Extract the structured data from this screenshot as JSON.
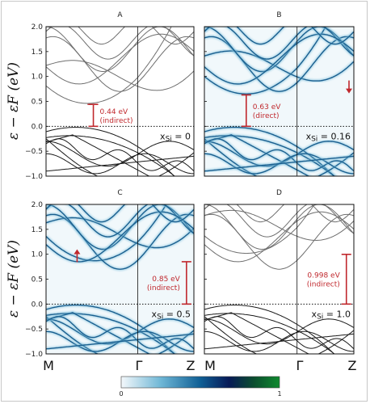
{
  "chart_data": {
    "type": "line",
    "ylabel": "ε − εF (eV)",
    "ylim": [
      -1.0,
      2.0
    ],
    "yticks": [
      "2.0",
      "1.5",
      "1.0",
      "0.5",
      "0.0",
      "−0.5",
      "−1.0"
    ],
    "kpath_labels": [
      "M",
      "Γ",
      "Z"
    ],
    "colorbar": {
      "min": "0",
      "max": "1",
      "colors": [
        "#f4f8fb",
        "#6fb7d6",
        "#0f5f95",
        "#071a57",
        "#0b4e2e",
        "#0f8a2e"
      ]
    },
    "panels": [
      {
        "title": "A",
        "style": "lines",
        "gap_value": 0.44,
        "gap_label": "0.44 eV",
        "gap_type": "(indirect)",
        "xsi_label": "x",
        "xsi_sub": "Si",
        "xsi_value": "= 0"
      },
      {
        "title": "B",
        "style": "spectral",
        "gap_value": 0.63,
        "gap_label": "0.63 eV",
        "gap_type": "(direct)",
        "xsi_label": "x",
        "xsi_sub": "Si",
        "xsi_value": "= 0.16"
      },
      {
        "title": "C",
        "style": "spectral",
        "gap_value": 0.85,
        "gap_label": "0.85 eV",
        "gap_type": "(indirect)",
        "xsi_label": "x",
        "xsi_sub": "Si",
        "xsi_value": "= 0.5"
      },
      {
        "title": "D",
        "style": "lines",
        "gap_value": 0.998,
        "gap_label": "0.998 eV",
        "gap_type": "(indirect)",
        "xsi_label": "x",
        "xsi_sub": "Si",
        "xsi_value": "= 1.0"
      }
    ]
  }
}
